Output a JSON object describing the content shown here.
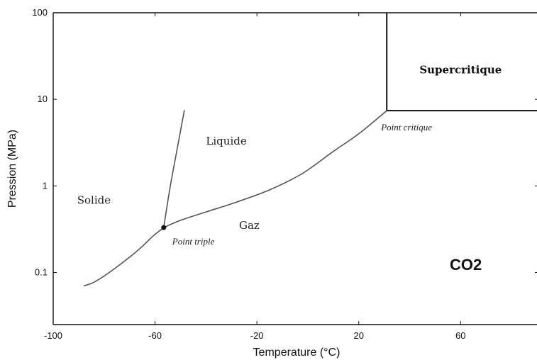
{
  "chart_data": {
    "type": "line",
    "title": "",
    "xlabel": "Temperature (°C)",
    "ylabel": "Pression (MPa)",
    "xlim": [
      -100,
      90
    ],
    "ylim": [
      0.025,
      100
    ],
    "yscale": "log",
    "xticks": [
      -100,
      -60,
      -20,
      20,
      60
    ],
    "yticks": [
      0.1,
      1,
      10,
      100
    ],
    "xtick_labels": [
      "-100",
      "-60",
      "-20",
      "20",
      "60"
    ],
    "ytick_labels": [
      "0.1",
      "1",
      "10",
      "100"
    ],
    "substance_label": "CO2",
    "series": [
      {
        "role": "sublimation",
        "points": [
          [
            -88,
            0.07
          ],
          [
            -84,
            0.077
          ],
          [
            -78,
            0.1
          ],
          [
            -70,
            0.15
          ],
          [
            -65,
            0.2
          ],
          [
            -61,
            0.26
          ],
          [
            -56.6,
            0.33
          ]
        ]
      },
      {
        "role": "fusion",
        "points": [
          [
            -56.6,
            0.33
          ],
          [
            -54,
            1.0
          ],
          [
            -51,
            3.0
          ],
          [
            -48.5,
            7.5
          ]
        ]
      },
      {
        "role": "vaporisation",
        "points": [
          [
            -56.6,
            0.33
          ],
          [
            -50,
            0.4
          ],
          [
            -40,
            0.5
          ],
          [
            -28,
            0.65
          ],
          [
            -15,
            0.9
          ],
          [
            -2,
            1.4
          ],
          [
            10,
            2.5
          ],
          [
            20,
            4.0
          ],
          [
            31,
            7.4
          ]
        ]
      }
    ],
    "regions": [
      {
        "label": "Solide",
        "x": -84,
        "y": 0.62,
        "bold": false
      },
      {
        "label": "Liquide",
        "x": -32,
        "y": 3.0,
        "bold": false
      },
      {
        "label": "Gaz",
        "x": -23,
        "y": 0.32,
        "bold": false
      },
      {
        "label": "Supercritique",
        "x": 60,
        "y": 20,
        "bold": true
      }
    ],
    "points": [
      {
        "label": "Point triple",
        "x": -56.6,
        "y": 0.33,
        "marker": true,
        "label_dx": 12,
        "label_dy": 24
      },
      {
        "label": "Point critique",
        "x": 31,
        "y": 7.4,
        "marker": false,
        "label_dx": -8,
        "label_dy": 28
      }
    ],
    "supercritical_region": {
      "x_from": 31,
      "y_from": 7.4,
      "y_to": 100
    },
    "grid": false
  }
}
